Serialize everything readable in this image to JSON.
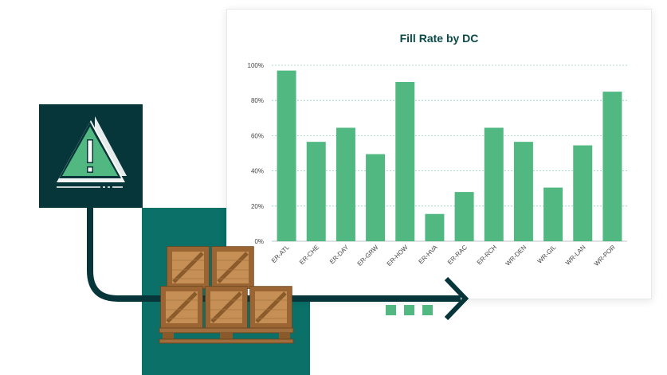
{
  "chart_data": {
    "type": "bar",
    "title": "Fill Rate by DC",
    "categories": [
      "ER-ATL",
      "ER-CHE",
      "ER-DAY",
      "ER-GRW",
      "ER-HOW",
      "ER-HVA",
      "ER-RAC",
      "ER-RCH",
      "WR-DEN",
      "WR-GIL",
      "WR-LAN",
      "WR-POR"
    ],
    "values": [
      97,
      56.5,
      64.5,
      49.5,
      90.5,
      15.5,
      28,
      64.5,
      56.5,
      30.5,
      54.5,
      85
    ],
    "yticks": [
      "0%",
      "20%",
      "40%",
      "60%",
      "80%",
      "100%"
    ],
    "ylim": [
      0,
      100
    ],
    "grid": true,
    "bar_color": "#52b882"
  },
  "colors": {
    "dark_teal": "#06363a",
    "teal": "#0a7068",
    "green": "#52b882",
    "grid": "#8fd0bb"
  },
  "icons": {
    "warning": "warning-triangle-icon",
    "crates": "wooden-crates-on-pallet",
    "arrow": "arrow-right-icon"
  }
}
